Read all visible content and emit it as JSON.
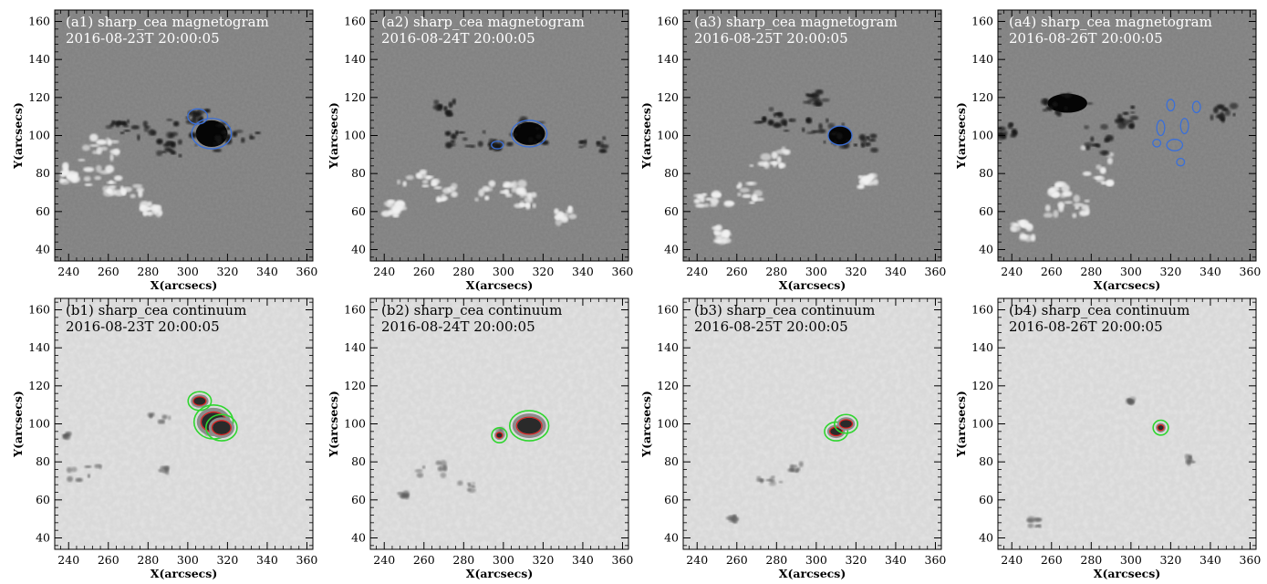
{
  "figure": {
    "rows": [
      {
        "kind": "magnetogram",
        "panels": [
          {
            "label": "(a1) sharp_cea magnetogram",
            "date": "2016-08-23T 20:00:05"
          },
          {
            "label": "(a2) sharp_cea magnetogram",
            "date": "2016-08-24T 20:00:05"
          },
          {
            "label": "(a3) sharp_cea magnetogram",
            "date": "2016-08-25T 20:00:05"
          },
          {
            "label": "(a4) sharp_cea magnetogram",
            "date": "2016-08-26T 20:00:05"
          }
        ]
      },
      {
        "kind": "continuum",
        "panels": [
          {
            "label": "(b1) sharp_cea continuum",
            "date": "2016-08-23T 20:00:05"
          },
          {
            "label": "(b2) sharp_cea continuum",
            "date": "2016-08-24T 20:00:05"
          },
          {
            "label": "(b3) sharp_cea continuum",
            "date": "2016-08-25T 20:00:05"
          },
          {
            "label": "(b4) sharp_cea continuum",
            "date": "2016-08-26T 20:00:05"
          }
        ]
      }
    ],
    "xlabel": "X(arcsecs)",
    "ylabel": "Y(arcsecs)",
    "xticks": [
      "240",
      "260",
      "280",
      "300",
      "320",
      "340",
      "360"
    ],
    "yticks": [
      "40",
      "60",
      "80",
      "100",
      "120",
      "140",
      "160"
    ],
    "x_values": [
      240,
      260,
      280,
      300,
      320,
      340,
      360
    ],
    "y_values": [
      40,
      60,
      80,
      100,
      120,
      140,
      160
    ],
    "xlim": [
      233,
      363
    ],
    "ylim": [
      34,
      166
    ],
    "colors": {
      "magnetogram_bg": "#808080",
      "continuum_bg": "#d9d9d9",
      "contour_umbra": "#3a6fd8",
      "contour_penumbra_green": "#2fd62f",
      "contour_penumbra_red": "#e01f1f",
      "label_on_dark": "#ffffff",
      "label_on_light": "#000000"
    }
  }
}
